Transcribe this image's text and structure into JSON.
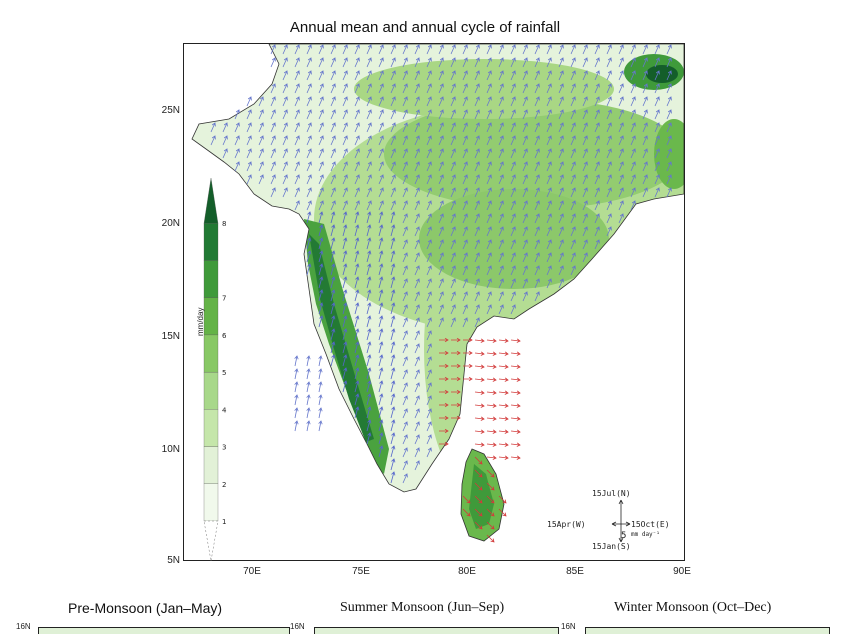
{
  "title": "Annual mean and annual cycle of rainfall",
  "lat_ticks": [
    "25N",
    "20N",
    "15N",
    "10N",
    "5N"
  ],
  "lon_ticks": [
    "70E",
    "75E",
    "80E",
    "85E",
    "90E"
  ],
  "colorbar": {
    "unit": "mm/day",
    "labels": [
      "1",
      "2",
      "3",
      "4",
      "5",
      "6",
      "7",
      "8"
    ],
    "colors": [
      "#f1f9ec",
      "#e2f1d7",
      "#c5e6aa",
      "#a8d88a",
      "#88c865",
      "#64b347",
      "#3f9a3a",
      "#227a34",
      "#145e2a"
    ]
  },
  "phase_legend": {
    "top": "15Jul(N)",
    "left": "15Apr(W)",
    "right": "15Oct(E)",
    "bottom": "15Jan(S)",
    "scale": "5",
    "scale_unit": "mm day⁻¹"
  },
  "subplots": {
    "titles": [
      "Pre-Monsoon (Jan–May)",
      "Summer Monsoon (Jun–Sep)",
      "Winter Monsoon (Oct–Dec)"
    ],
    "lat_label": "16N"
  }
}
